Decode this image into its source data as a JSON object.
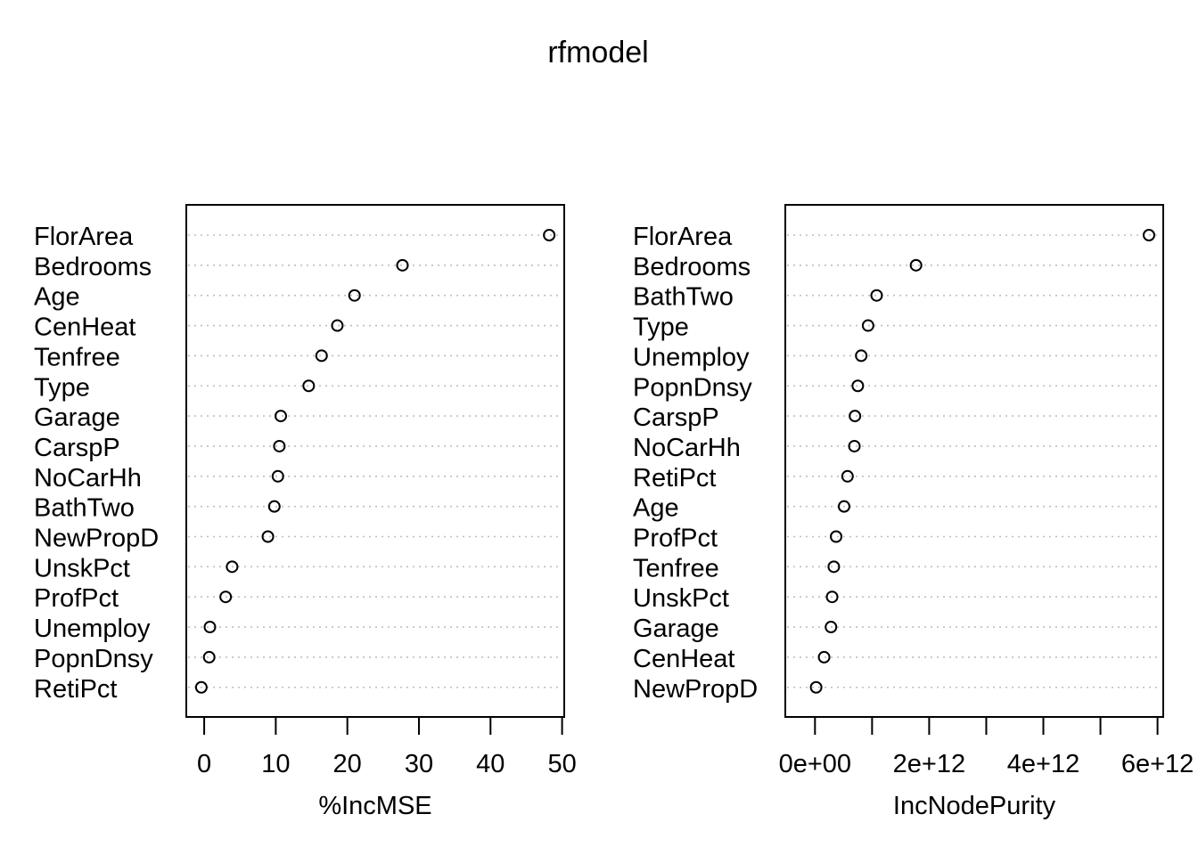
{
  "chart_data": {
    "title": "rfmodel",
    "type": "scatter",
    "panels": [
      {
        "xlabel": "%IncMSE",
        "xlim": [
          -2.5,
          50.3
        ],
        "ticks": [
          0,
          10,
          20,
          30,
          40,
          50
        ],
        "tick_labels": [
          "0",
          "10",
          "20",
          "30",
          "40",
          "50"
        ],
        "grid": true,
        "points": [
          {
            "label": "FlorArea",
            "value": 48.2
          },
          {
            "label": "Bedrooms",
            "value": 27.7
          },
          {
            "label": "Age",
            "value": 21.0
          },
          {
            "label": "CenHeat",
            "value": 18.6
          },
          {
            "label": "Tenfree",
            "value": 16.4
          },
          {
            "label": "Type",
            "value": 14.6
          },
          {
            "label": "Garage",
            "value": 10.7
          },
          {
            "label": "CarspP",
            "value": 10.5
          },
          {
            "label": "NoCarHh",
            "value": 10.3
          },
          {
            "label": "BathTwo",
            "value": 9.8
          },
          {
            "label": "NewPropD",
            "value": 8.9
          },
          {
            "label": "UnskPct",
            "value": 3.9
          },
          {
            "label": "ProfPct",
            "value": 3.0
          },
          {
            "label": "Unemploy",
            "value": 0.8
          },
          {
            "label": "PopnDnsy",
            "value": 0.7
          },
          {
            "label": "RetiPct",
            "value": -0.4
          }
        ]
      },
      {
        "xlabel": "IncNodePurity",
        "xlim": [
          -520000000000.0,
          6100000000000.0
        ],
        "ticks": [
          0,
          1000000000000.0,
          2000000000000.0,
          3000000000000.0,
          4000000000000.0,
          5000000000000.0,
          6000000000000.0
        ],
        "tick_labels": [
          "0e+00",
          "",
          "2e+12",
          "",
          "4e+12",
          "",
          "6e+12"
        ],
        "grid": true,
        "points": [
          {
            "label": "FlorArea",
            "value": 5850000000000.0
          },
          {
            "label": "Bedrooms",
            "value": 1770000000000.0
          },
          {
            "label": "BathTwo",
            "value": 1080000000000.0
          },
          {
            "label": "Type",
            "value": 930000000000.0
          },
          {
            "label": "Unemploy",
            "value": 810000000000.0
          },
          {
            "label": "PopnDnsy",
            "value": 750000000000.0
          },
          {
            "label": "CarspP",
            "value": 700000000000.0
          },
          {
            "label": "NoCarHh",
            "value": 690000000000.0
          },
          {
            "label": "RetiPct",
            "value": 570000000000.0
          },
          {
            "label": "Age",
            "value": 510000000000.0
          },
          {
            "label": "ProfPct",
            "value": 370000000000.0
          },
          {
            "label": "Tenfree",
            "value": 330000000000.0
          },
          {
            "label": "UnskPct",
            "value": 300000000000.0
          },
          {
            "label": "Garage",
            "value": 280000000000.0
          },
          {
            "label": "CenHeat",
            "value": 160000000000.0
          },
          {
            "label": "NewPropD",
            "value": 20000000000.0
          }
        ]
      }
    ]
  }
}
